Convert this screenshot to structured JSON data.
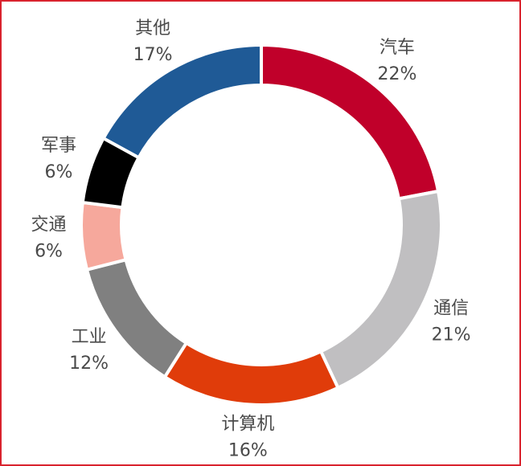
{
  "chart_data": {
    "type": "donut",
    "categories": [
      "汽车",
      "通信",
      "计算机",
      "工业",
      "交通",
      "军事",
      "其他"
    ],
    "values": [
      22,
      21,
      16,
      12,
      6,
      6,
      17
    ],
    "value_labels": [
      "22%",
      "21%",
      "16%",
      "12%",
      "6%",
      "6%",
      "17%"
    ],
    "colors": [
      "#c0002a",
      "#c0bfc1",
      "#e03c0a",
      "#808080",
      "#f6a89c",
      "#000000",
      "#1f5a96"
    ]
  }
}
